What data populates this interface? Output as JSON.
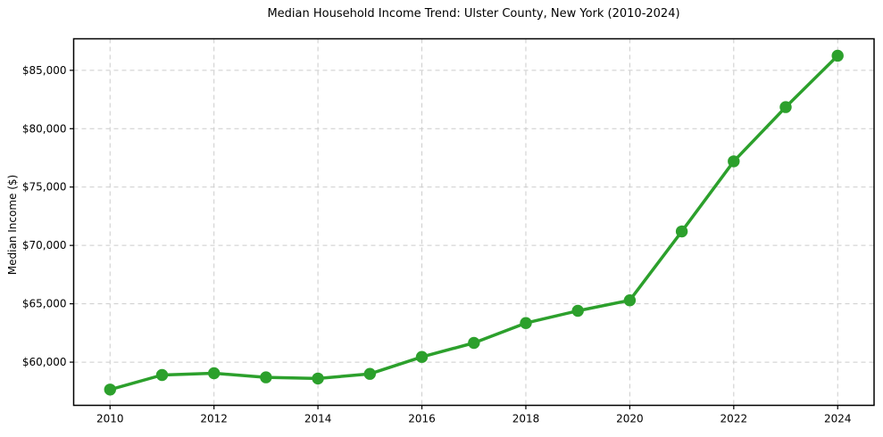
{
  "figure": {
    "title": "Median Household Income Trend: Ulster County, New York (2010-2024)"
  },
  "chart_data": {
    "type": "line",
    "title": "Median Household Income Trend: Ulster County, New York (2010-2024)",
    "xlabel": "",
    "ylabel": "Median Income ($)",
    "x": [
      2010,
      2011,
      2012,
      2013,
      2014,
      2015,
      2016,
      2017,
      2018,
      2019,
      2020,
      2021,
      2022,
      2023,
      2024
    ],
    "series": [
      {
        "name": "Median Household Income",
        "values": [
          57650,
          58900,
          59050,
          58700,
          58600,
          59000,
          60450,
          61650,
          63350,
          64400,
          65300,
          71200,
          77200,
          81850,
          86250
        ],
        "color": "#2ca02c",
        "marker": "circle"
      }
    ],
    "xlim": [
      2009.3,
      2024.7
    ],
    "ylim": [
      56300,
      87700
    ],
    "x_ticks": {
      "values": [
        2010,
        2012,
        2014,
        2016,
        2018,
        2020,
        2022,
        2024
      ],
      "labels": [
        "2010",
        "2012",
        "2014",
        "2016",
        "2018",
        "2020",
        "2022",
        "2024"
      ]
    },
    "y_ticks": {
      "values": [
        60000,
        65000,
        70000,
        75000,
        80000,
        85000
      ],
      "labels": [
        "$60,000",
        "$65,000",
        "$70,000",
        "$75,000",
        "$80,000",
        "$85,000"
      ]
    },
    "grid": {
      "show": true,
      "color": "#cccccc",
      "style": "dashed"
    },
    "legend": {
      "show": false
    },
    "colors": {
      "background": "#ffffff",
      "axis": "#000000",
      "text": "#000000",
      "line": "#2ca02c"
    }
  }
}
